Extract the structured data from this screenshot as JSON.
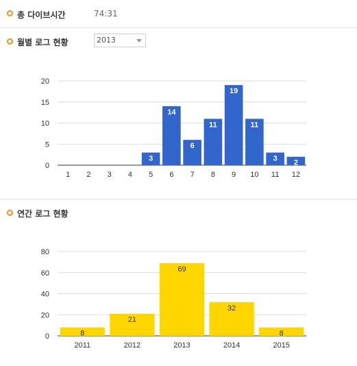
{
  "total": {
    "label": "총 다이브시간",
    "value": "74:31"
  },
  "monthly": {
    "label": "월별 로그 현황",
    "year_select": {
      "selected": "2013"
    }
  },
  "yearly": {
    "label": "연간 로그 현황"
  },
  "colors": {
    "bullet": "#ee8f22",
    "monthly_bar": "#3366cc",
    "yearly_bar": "#ffd600"
  },
  "chart_data": [
    {
      "type": "bar",
      "categories": [
        "1",
        "2",
        "3",
        "4",
        "5",
        "6",
        "7",
        "8",
        "9",
        "10",
        "11",
        "12"
      ],
      "values": [
        0,
        0,
        0,
        0,
        3,
        14,
        6,
        11,
        19,
        11,
        3,
        2
      ],
      "ylim": [
        0,
        20
      ],
      "yticks": [
        0,
        5,
        10,
        15,
        20
      ],
      "grid": true
    },
    {
      "type": "bar",
      "categories": [
        "2011",
        "2012",
        "2013",
        "2014",
        "2015"
      ],
      "values": [
        8,
        21,
        69,
        32,
        8
      ],
      "ylim": [
        0,
        80
      ],
      "yticks": [
        0,
        20,
        40,
        60,
        80
      ],
      "grid": true
    }
  ]
}
